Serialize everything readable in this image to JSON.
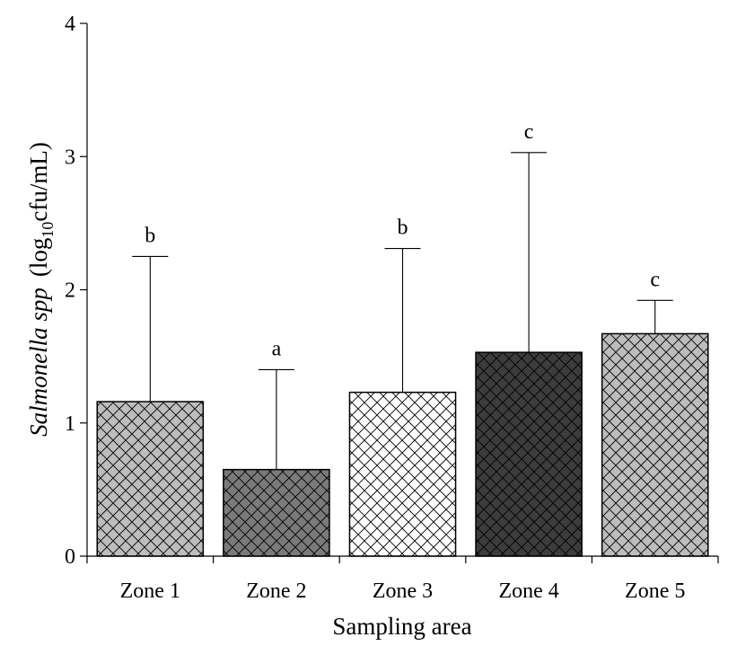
{
  "chart_data": {
    "type": "bar",
    "categories": [
      "Zone 1",
      "Zone 2",
      "Zone 3",
      "Zone 4",
      "Zone 5"
    ],
    "values": [
      1.16,
      0.65,
      1.23,
      1.53,
      1.67
    ],
    "error_upper": [
      2.25,
      1.4,
      2.31,
      3.03,
      1.92
    ],
    "significance": [
      "b",
      "a",
      "b",
      "c",
      "c"
    ],
    "fill_colors": [
      "#bdbdbd",
      "#7a7a7a",
      "#ffffff",
      "#3c3c3c",
      "#bdbdbd"
    ],
    "ylim": [
      0,
      4
    ],
    "yticks": [
      0,
      1,
      2,
      3,
      4
    ],
    "xlabel": "Sampling area",
    "ylabel": {
      "italic": "Salmonella spp",
      "prefix": "(log",
      "subscript": "10",
      "suffix": "cfu/mL)"
    }
  }
}
